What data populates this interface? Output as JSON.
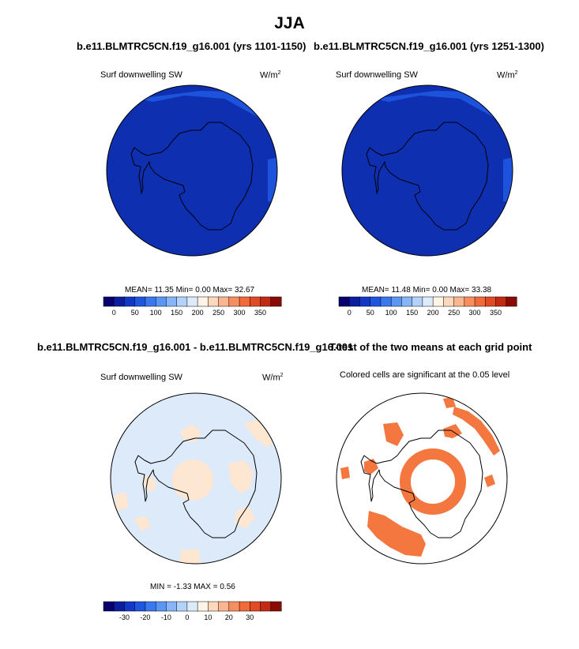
{
  "figure": {
    "title": "JJA"
  },
  "panels": [
    {
      "id": "case1",
      "title": "b.e11.BLMTRC5CN.f19_g16.001 (yrs 1101-1150)",
      "variable": "Surf downwelling SW",
      "units_base": "W/m",
      "units_exp": "2",
      "stats": "MEAN=  11.35  Min=   0.00  Max=  32.67",
      "base_color": "#0d2fb0",
      "accent_color": "#1c52dc"
    },
    {
      "id": "case2",
      "title": "b.e11.BLMTRC5CN.f19_g16.001 (yrs 1251-1300)",
      "variable": "Surf downwelling SW",
      "units_base": "W/m",
      "units_exp": "2",
      "stats": "MEAN=  11.48  Min=   0.00  Max=  33.38",
      "base_color": "#0d2fb0",
      "accent_color": "#1c52dc"
    },
    {
      "id": "difference",
      "title": "b.e11.BLMTRC5CN.f19_g16.001 - b.e11.BLMTRC5CN.f19_g16.001",
      "variable": "Surf downwelling SW",
      "units_base": "W/m",
      "units_exp": "2",
      "stats": "MIN =  -1.33 MAX =   0.56",
      "base_color": "#dceafa",
      "accent_color": "#fde6d2"
    },
    {
      "id": "ttest",
      "title": "T-test of the two means at each grid point",
      "subtitle": "Colored cells are significant at the 0.05 level",
      "sig_color": "#f4773f"
    }
  ],
  "colorbars": {
    "absolute": {
      "colors": [
        "#08006e",
        "#0a1e9e",
        "#1238c8",
        "#1f56e0",
        "#3a78ef",
        "#5c96f5",
        "#86b6f9",
        "#b2d2fb",
        "#dceafa",
        "#fff4e6",
        "#fdd8bd",
        "#fbb690",
        "#f88e60",
        "#f06a3c",
        "#e14a24",
        "#c22a13",
        "#8a0a04"
      ],
      "tick_labels": [
        "0",
        "50",
        "100",
        "150",
        "200",
        "250",
        "300",
        "350"
      ]
    },
    "difference": {
      "colors": [
        "#08006e",
        "#0a1e9e",
        "#1238c8",
        "#1f56e0",
        "#3a78ef",
        "#5c96f5",
        "#86b6f9",
        "#b2d2fb",
        "#dceafa",
        "#fff4e6",
        "#fdd8bd",
        "#fbb690",
        "#f88e60",
        "#f06a3c",
        "#e14a24",
        "#c22a13",
        "#8a0a04"
      ],
      "tick_labels": [
        "-30",
        "-20",
        "-10",
        "0",
        "10",
        "20",
        "30"
      ]
    }
  },
  "map": {
    "projection": "south polar stereographic",
    "region": "Antarctica"
  }
}
